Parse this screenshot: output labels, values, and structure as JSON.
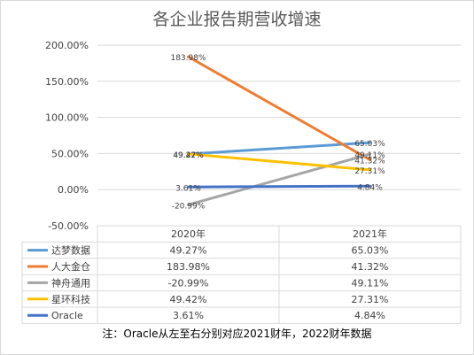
{
  "chart_data": {
    "type": "line",
    "title": "各企业报告期营收增速",
    "categories": [
      "2020年",
      "2021年"
    ],
    "ylim": [
      -50,
      200
    ],
    "yticks": [
      200,
      150,
      100,
      50,
      0,
      -50
    ],
    "ytick_labels": [
      "200.00%",
      "150.00%",
      "100.00%",
      "50.00%",
      "0.00%",
      "-50.00%"
    ],
    "grid": true,
    "legend": "data-table",
    "series": [
      {
        "name": "达梦数据",
        "color": "#5b9bd5",
        "values": [
          49.27,
          65.03
        ],
        "labels": [
          "49.27%",
          "65.03%"
        ]
      },
      {
        "name": "人大金仓",
        "color": "#ed7d31",
        "values": [
          183.98,
          41.32
        ],
        "labels": [
          "183.98%",
          "41.32%"
        ]
      },
      {
        "name": "神舟通用",
        "color": "#a5a5a5",
        "values": [
          -20.99,
          49.11
        ],
        "labels": [
          "-20.99%",
          "49.11%"
        ]
      },
      {
        "name": "星环科技",
        "color": "#ffc000",
        "values": [
          49.42,
          27.31
        ],
        "labels": [
          "49.42%",
          "27.31%"
        ]
      },
      {
        "name": "Oracle",
        "color": "#4472c4",
        "values": [
          3.61,
          4.84
        ],
        "labels": [
          "3.61%",
          "4.84%"
        ]
      }
    ]
  },
  "note": "注：Oracle从左至右分别对应2021财年，2022财年数据"
}
